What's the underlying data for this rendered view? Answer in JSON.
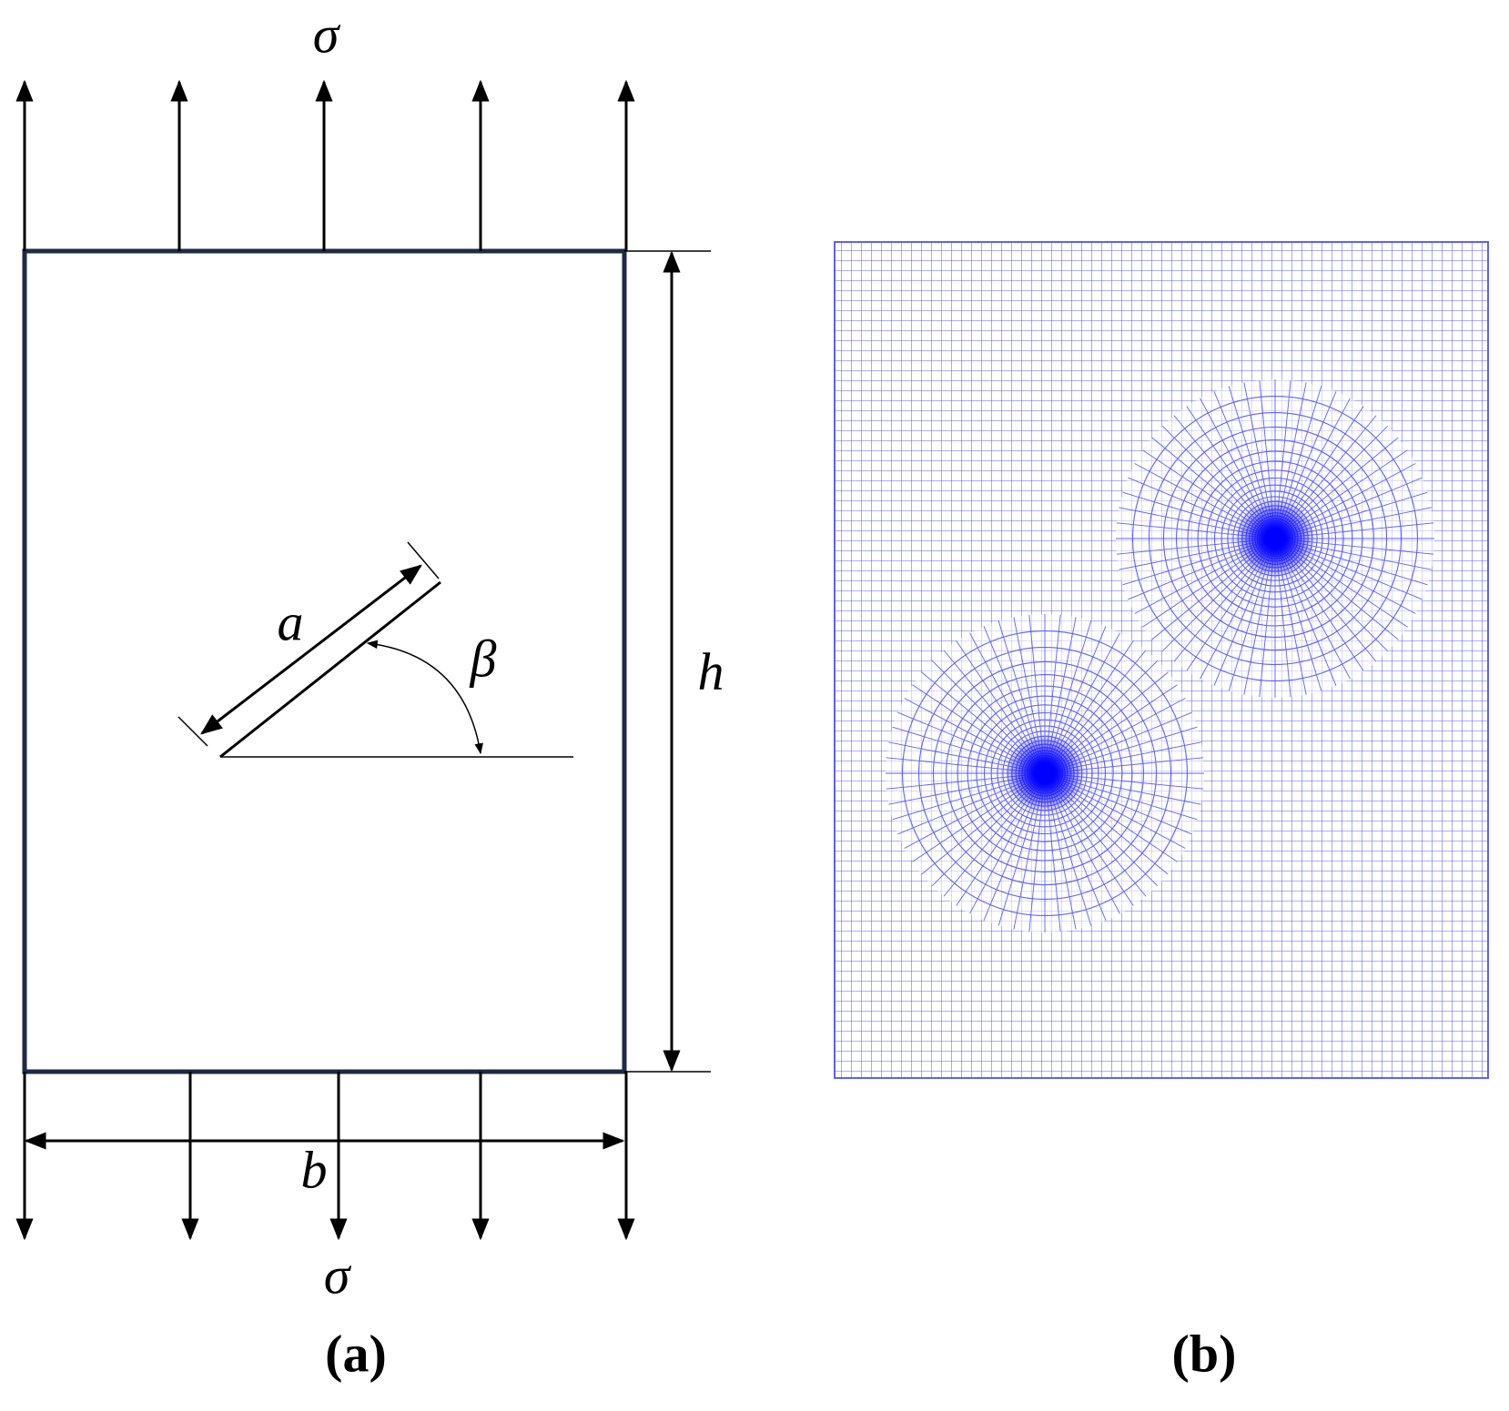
{
  "panel_a": {
    "load_top": "σ",
    "load_bottom": "σ",
    "crack_length": "a",
    "crack_angle": "β",
    "height": "h",
    "width": "b",
    "caption": "(a)"
  },
  "panel_b": {
    "caption": "(b)"
  }
}
